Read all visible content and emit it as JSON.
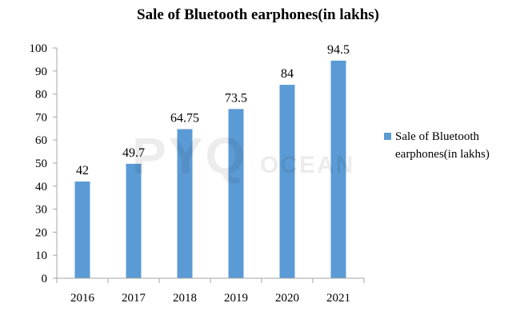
{
  "chart_data": {
    "type": "bar",
    "title": "Sale of Bluetooth earphones(in lakhs)",
    "categories": [
      "2016",
      "2017",
      "2018",
      "2019",
      "2020",
      "2021"
    ],
    "series": [
      {
        "name": "Sale of Bluetooth earphones(in lakhs)",
        "values": [
          42,
          49.7,
          64.75,
          73.5,
          84,
          94.5
        ],
        "labels": [
          "42",
          "49.7",
          "64.75",
          "73.5",
          "84",
          "94.5"
        ]
      }
    ],
    "ylim": [
      0,
      100
    ],
    "yticks": [
      "0",
      "10",
      "20",
      "30",
      "40",
      "50",
      "60",
      "70",
      "80",
      "90",
      "100"
    ],
    "grid": false,
    "legend_position": "right",
    "bar_color": "#5b9bd5",
    "xlabel": "",
    "ylabel": ""
  },
  "watermark": {
    "main": "PYQ",
    "sub": "OCEAN"
  }
}
